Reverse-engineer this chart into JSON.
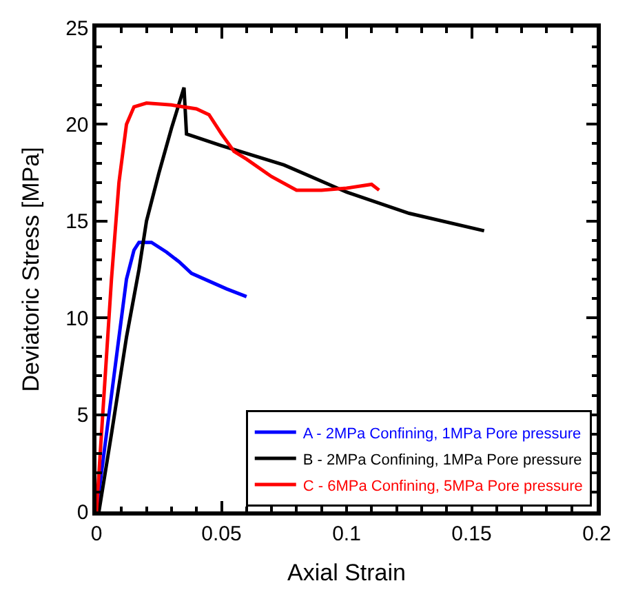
{
  "chart_data": {
    "type": "line",
    "xlabel": "Axial Strain",
    "ylabel": "Deviatoric Stress [MPa]",
    "xlim": [
      0,
      0.2
    ],
    "xticks": [
      0,
      0.05,
      0.1,
      0.15,
      {
        "value": 0.2,
        "label": "0.2"
      }
    ],
    "ylim": [
      0,
      25
    ],
    "yticks": [
      0,
      5,
      10,
      15,
      20,
      25
    ],
    "legend": "bottom right",
    "series": [
      {
        "name": "A - 2MPa Confining, 1MPa Pore pressure",
        "color": "#0000ff",
        "x": [
          0,
          0.004,
          0.008,
          0.012,
          0.015,
          0.017,
          0.022,
          0.028,
          0.033,
          0.038,
          0.045,
          0.052,
          0.06
        ],
        "values": [
          0,
          4,
          8,
          12,
          13.5,
          13.9,
          13.9,
          13.4,
          12.9,
          12.3,
          11.9,
          11.5,
          11.1
        ]
      },
      {
        "name": "B - 2MPa Confining, 1MPa Pore pressure",
        "color": "#000000",
        "x": [
          0.001,
          0.006,
          0.012,
          0.017,
          0.02,
          0.025,
          0.03,
          0.035,
          0.036,
          0.05,
          0.075,
          0.1,
          0.125,
          0.155
        ],
        "values": [
          0,
          4,
          9,
          12.5,
          15,
          17.5,
          19.8,
          21.9,
          19.5,
          18.9,
          17.9,
          16.5,
          15.4,
          14.5
        ]
      },
      {
        "name": "C - 6MPa Confining, 5MPa Pore pressure",
        "color": "#ff0000",
        "x": [
          0,
          0.003,
          0.006,
          0.009,
          0.012,
          0.015,
          0.02,
          0.03,
          0.04,
          0.045,
          0.05,
          0.055,
          0.06,
          0.07,
          0.08,
          0.09,
          0.1,
          0.11,
          0.113
        ],
        "values": [
          0,
          6,
          12,
          17,
          20,
          20.9,
          21.1,
          21,
          20.8,
          20.5,
          19.5,
          18.6,
          18.2,
          17.3,
          16.6,
          16.6,
          16.7,
          16.9,
          16.6
        ]
      }
    ]
  }
}
